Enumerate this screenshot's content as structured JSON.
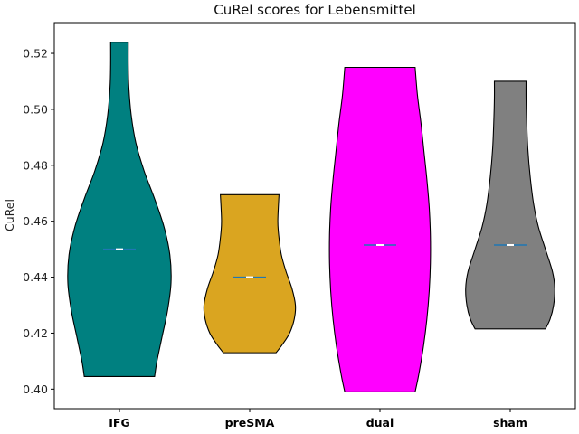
{
  "chart_data": {
    "type": "violin",
    "title": "CuRel scores for Lebensmittel",
    "xlabel": "",
    "ylabel": "CuRel",
    "ylim": [
      0.393,
      0.531
    ],
    "yticks": [
      0.4,
      0.42,
      0.44,
      0.46,
      0.48,
      0.5,
      0.52
    ],
    "ytick_labels": [
      "0.40",
      "0.42",
      "0.44",
      "0.46",
      "0.48",
      "0.50",
      "0.52"
    ],
    "grid": false,
    "legend": "none",
    "categories": [
      "IFG",
      "preSMA",
      "dual",
      "sham"
    ],
    "violins": [
      {
        "label": "IFG",
        "color": "#008080",
        "min": 0.4045,
        "max": 0.524,
        "median": 0.45,
        "profile": [
          [
            0.4045,
            0.6
          ],
          [
            0.41,
            0.64
          ],
          [
            0.418,
            0.72
          ],
          [
            0.428,
            0.82
          ],
          [
            0.438,
            0.88
          ],
          [
            0.448,
            0.86
          ],
          [
            0.458,
            0.76
          ],
          [
            0.468,
            0.6
          ],
          [
            0.478,
            0.42
          ],
          [
            0.488,
            0.28
          ],
          [
            0.498,
            0.2
          ],
          [
            0.508,
            0.16
          ],
          [
            0.516,
            0.15
          ],
          [
            0.524,
            0.15
          ]
        ]
      },
      {
        "label": "preSMA",
        "color": "#DAA520",
        "min": 0.413,
        "max": 0.4695,
        "median": 0.44,
        "profile": [
          [
            0.413,
            0.45
          ],
          [
            0.416,
            0.56
          ],
          [
            0.42,
            0.68
          ],
          [
            0.425,
            0.76
          ],
          [
            0.43,
            0.78
          ],
          [
            0.436,
            0.72
          ],
          [
            0.442,
            0.62
          ],
          [
            0.448,
            0.54
          ],
          [
            0.454,
            0.5
          ],
          [
            0.46,
            0.48
          ],
          [
            0.4695,
            0.5
          ]
        ]
      },
      {
        "label": "dual",
        "color": "#FF00FF",
        "min": 0.399,
        "max": 0.515,
        "median": 0.4515,
        "profile": [
          [
            0.399,
            0.6
          ],
          [
            0.405,
            0.66
          ],
          [
            0.415,
            0.74
          ],
          [
            0.425,
            0.8
          ],
          [
            0.435,
            0.84
          ],
          [
            0.445,
            0.86
          ],
          [
            0.455,
            0.86
          ],
          [
            0.465,
            0.84
          ],
          [
            0.475,
            0.8
          ],
          [
            0.485,
            0.75
          ],
          [
            0.495,
            0.7
          ],
          [
            0.505,
            0.64
          ],
          [
            0.515,
            0.6
          ]
        ]
      },
      {
        "label": "sham",
        "color": "#808080",
        "min": 0.4215,
        "max": 0.51,
        "median": 0.4515,
        "profile": [
          [
            0.4215,
            0.6
          ],
          [
            0.425,
            0.68
          ],
          [
            0.43,
            0.74
          ],
          [
            0.436,
            0.76
          ],
          [
            0.442,
            0.72
          ],
          [
            0.45,
            0.6
          ],
          [
            0.458,
            0.48
          ],
          [
            0.466,
            0.4
          ],
          [
            0.476,
            0.34
          ],
          [
            0.486,
            0.3
          ],
          [
            0.496,
            0.28
          ],
          [
            0.504,
            0.27
          ],
          [
            0.51,
            0.27
          ]
        ]
      }
    ]
  }
}
